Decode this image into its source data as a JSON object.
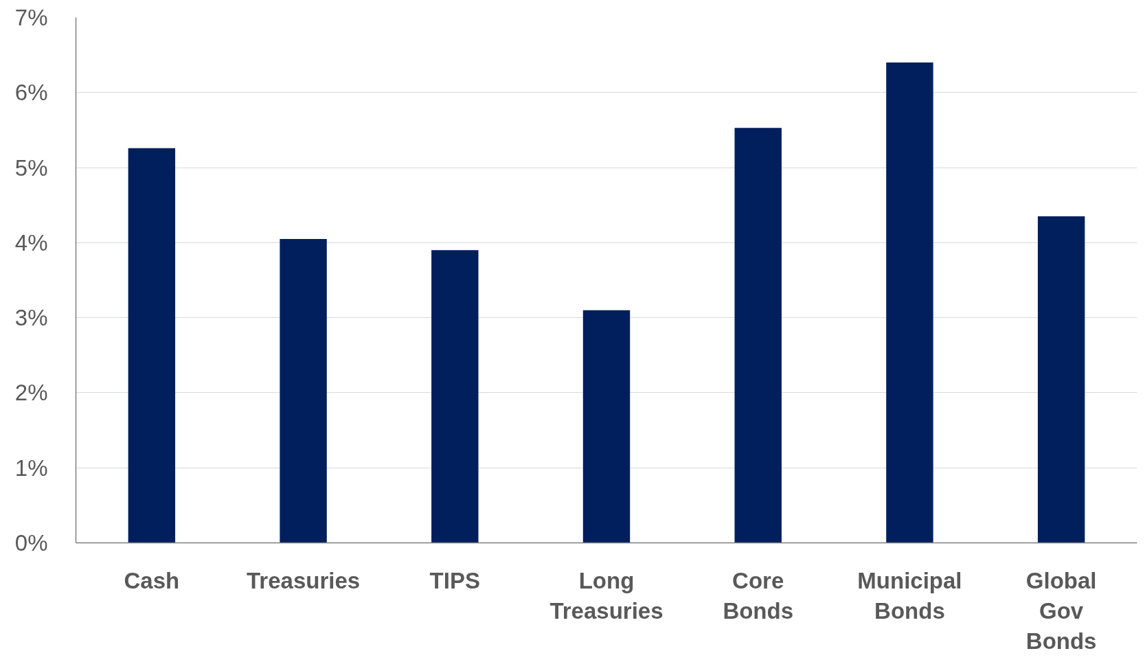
{
  "chart_data": {
    "type": "bar",
    "categories": [
      "Cash",
      "Treasuries",
      "TIPS",
      "Long\nTreasuries",
      "Core\nBonds",
      "Municipal\nBonds",
      "Global\nGov\nBonds"
    ],
    "values": [
      5.26,
      4.05,
      3.9,
      3.1,
      5.53,
      6.4,
      4.35
    ],
    "color": "#001f5c",
    "ylim": [
      0,
      7
    ],
    "yticks": [
      {
        "value": 0,
        "label": "0%"
      },
      {
        "value": 1,
        "label": "1%"
      },
      {
        "value": 2,
        "label": "2%"
      },
      {
        "value": 3,
        "label": "3%"
      },
      {
        "value": 4,
        "label": "4%"
      },
      {
        "value": 5,
        "label": "5%"
      },
      {
        "value": 6,
        "label": "6%"
      },
      {
        "value": 7,
        "label": "7%"
      }
    ],
    "grid": "y"
  }
}
